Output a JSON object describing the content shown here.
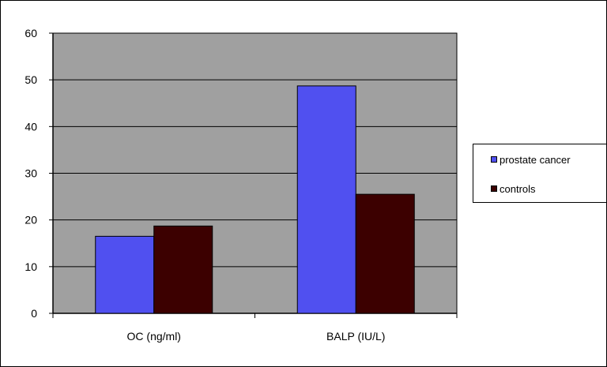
{
  "chart_data": {
    "type": "bar",
    "categories": [
      "OC (ng/ml)",
      "BALP (IU/L)"
    ],
    "series": [
      {
        "name": "prostate cancer",
        "values": [
          16.5,
          48.7
        ],
        "color": "#5050f0"
      },
      {
        "name": "controls",
        "values": [
          18.7,
          25.5
        ],
        "color": "#3c0000"
      }
    ],
    "ylim": [
      0,
      60
    ],
    "yticks": [
      0,
      10,
      20,
      30,
      40,
      50,
      60
    ],
    "grid": true,
    "plot_background": "#a0a0a0",
    "legend_position": "right"
  }
}
